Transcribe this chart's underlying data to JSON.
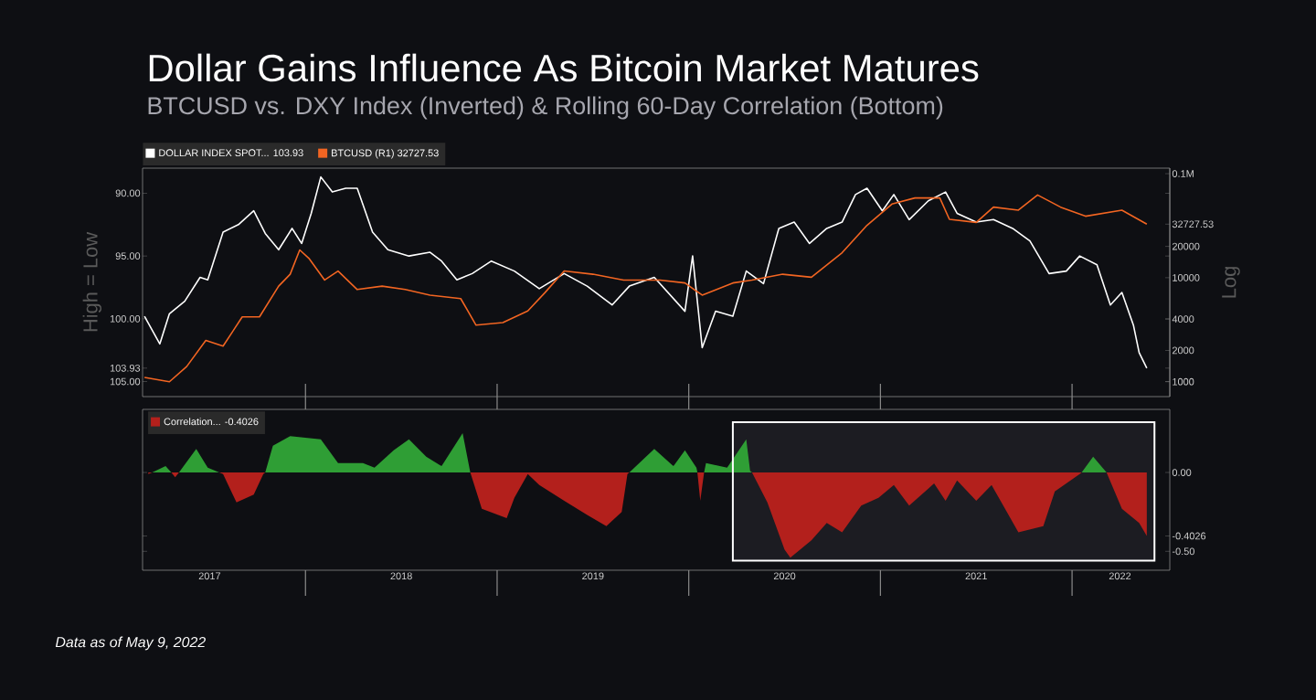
{
  "chart_data": [
    {
      "type": "line",
      "title": "Dollar Gains Influence As Bitcoin Market Matures",
      "subtitle": "BTCUSD vs. DXY Index (Inverted) & Rolling 60-Day Correlation (Bottom)",
      "ylabel": "High = Low",
      "y2label": "Log",
      "xlim": [
        2017.15,
        2022.51
      ],
      "ylim": [
        106.2,
        88.0
      ],
      "yticks": [
        {
          "value": 90,
          "label": "90.00"
        },
        {
          "value": 95,
          "label": "95.00"
        },
        {
          "value": 100,
          "label": "100.00"
        },
        103.93,
        {
          "value": 105,
          "label": "105.00"
        }
      ],
      "y2lim": [
        720,
        113000
      ],
      "y2ticks": [
        1000,
        2000,
        4000,
        10000,
        20000,
        32727.53,
        {
          "value": 100000,
          "label": "0.1M"
        }
      ],
      "log": "y2",
      "legend": "top left",
      "tick_labels": "y",
      "series": [
        {
          "name": "DOLLAR INDEX SPOT... 103.93",
          "color": "#ffffff",
          "x": [
            2017.16,
            2017.24,
            2017.29,
            2017.37,
            2017.45,
            2017.49,
            2017.57,
            2017.65,
            2017.73,
            2017.79,
            2017.86,
            2017.93,
            2017.98,
            2018.03,
            2018.08,
            2018.14,
            2018.21,
            2018.27,
            2018.35,
            2018.43,
            2018.54,
            2018.65,
            2018.71,
            2018.79,
            2018.87,
            2018.97,
            2019.09,
            2019.22,
            2019.35,
            2019.47,
            2019.6,
            2019.69,
            2019.82,
            2019.98,
            2020.02,
            2020.07,
            2020.14,
            2020.23,
            2020.3,
            2020.39,
            2020.47,
            2020.55,
            2020.63,
            2020.72,
            2020.8,
            2020.87,
            2020.93,
            2021.01,
            2021.07,
            2021.15,
            2021.25,
            2021.34,
            2021.4,
            2021.5,
            2021.59,
            2021.69,
            2021.78,
            2021.88,
            2021.97,
            2022.04,
            2022.13,
            2022.2,
            2022.26,
            2022.32,
            2022.35,
            2022.39
          ],
          "values": [
            99.8,
            102.0,
            99.6,
            98.6,
            96.7,
            96.9,
            93.1,
            92.5,
            91.4,
            93.2,
            94.5,
            92.8,
            94.0,
            91.6,
            88.7,
            89.9,
            89.6,
            89.6,
            93.1,
            94.5,
            95.0,
            94.7,
            95.4,
            96.9,
            96.4,
            95.4,
            96.2,
            97.6,
            96.4,
            97.4,
            98.9,
            97.4,
            96.7,
            99.4,
            95.0,
            102.3,
            99.4,
            99.8,
            96.2,
            97.2,
            92.8,
            92.3,
            94.0,
            92.8,
            92.3,
            90.1,
            89.6,
            91.4,
            90.1,
            92.1,
            90.6,
            89.9,
            91.6,
            92.3,
            92.1,
            92.8,
            93.8,
            96.4,
            96.2,
            95.0,
            95.7,
            98.9,
            97.9,
            100.5,
            102.7,
            103.93
          ]
        },
        {
          "name": "BTCUSD (R1) 32727.53",
          "color": "#f26522",
          "axis": "y2",
          "x": [
            2017.16,
            2017.29,
            2017.38,
            2017.48,
            2017.57,
            2017.67,
            2017.76,
            2017.86,
            2017.92,
            2017.97,
            2018.02,
            2018.1,
            2018.17,
            2018.27,
            2018.4,
            2018.52,
            2018.65,
            2018.81,
            2018.89,
            2019.03,
            2019.16,
            2019.25,
            2019.35,
            2019.5,
            2019.66,
            2019.85,
            2019.98,
            2020.07,
            2020.23,
            2020.33,
            2020.49,
            2020.64,
            2020.8,
            2020.93,
            2021.06,
            2021.18,
            2021.31,
            2021.36,
            2021.5,
            2021.59,
            2021.72,
            2021.82,
            2021.94,
            2022.07,
            2022.26,
            2022.39
          ],
          "values": [
            1100,
            1000,
            1400,
            2500,
            2200,
            4200,
            4200,
            8300,
            10800,
            18500,
            15200,
            9500,
            11600,
            7700,
            8300,
            7700,
            6800,
            6300,
            3500,
            3700,
            4800,
            7200,
            11600,
            10800,
            9500,
            9500,
            8900,
            6800,
            8900,
            9500,
            10800,
            10100,
            17400,
            31900,
            51000,
            58400,
            58400,
            36400,
            34000,
            47700,
            44600,
            62400,
            47700,
            39000,
            44600,
            32727.53
          ]
        }
      ]
    },
    {
      "type": "area",
      "xlim": [
        2017.15,
        2022.51
      ],
      "ylim": [
        -0.62,
        0.4
      ],
      "xticks": [
        {
          "value": 2018,
          "label": null
        },
        {
          "value": 2019,
          "label": null
        },
        {
          "value": 2020,
          "label": null
        },
        {
          "value": 2021,
          "label": null
        },
        {
          "value": 2022,
          "label": null
        },
        {
          "value": 2017.5,
          "label": "2017"
        },
        {
          "value": 2018.5,
          "label": "2018"
        },
        {
          "value": 2019.5,
          "label": "2019"
        },
        {
          "value": 2020.5,
          "label": "2020"
        },
        {
          "value": 2021.5,
          "label": "2021"
        },
        {
          "value": 2022.25,
          "label": "2022"
        }
      ],
      "yticks": [
        {
          "value": 0,
          "label": "0.00"
        },
        -0.4026,
        {
          "value": -0.5,
          "label": "-0.50"
        }
      ],
      "legend": "top left",
      "bands": [
        {
          "axis": "x",
          "from": 2020.23,
          "to": 2022.43,
          "color": "#1c1c22"
        }
      ],
      "annotations": [
        "Data as of May 9, 2022"
      ],
      "series": [
        {
          "color": "#2f9e35",
          "x": [
            2017.2,
            2017.27,
            2017.3,
            2017.34,
            2017.43,
            2017.49,
            2017.55,
            2017.79,
            2017.83,
            2017.92,
            2018.08,
            2018.17,
            2018.3,
            2018.36,
            2018.46,
            2018.54,
            2018.63,
            2018.71,
            2018.82,
            2018.86,
            2019.69,
            2019.82,
            2019.92,
            2019.98,
            2020.04,
            2020.045,
            2020.08,
            2020.09,
            2020.2,
            2020.3,
            2020.32,
            2020.33,
            2022.05,
            2022.11,
            2022.18
          ],
          "values": [
            0,
            0.04,
            0,
            0,
            0.15,
            0.03,
            0,
            0,
            0.17,
            0.23,
            0.21,
            0.06,
            0.06,
            0.03,
            0.14,
            0.21,
            0.1,
            0.04,
            0.25,
            0,
            0,
            0.15,
            0.04,
            0.14,
            0.03,
            0,
            0,
            0.06,
            0.03,
            0.21,
            0.01,
            0,
            0,
            0.1,
            0
          ]
        },
        {
          "name": "Correlation... -0.4026",
          "color": "#b3201c",
          "x": [
            2017.18,
            2017.2,
            2017.3,
            2017.32,
            2017.34,
            2017.55,
            2017.57,
            2017.64,
            2017.73,
            2017.78,
            2017.79,
            2018.86,
            2018.92,
            2019.05,
            2019.09,
            2019.16,
            2019.22,
            2019.35,
            2019.47,
            2019.57,
            2019.65,
            2019.68,
            2019.69,
            2020.045,
            2020.06,
            2020.08,
            2020.33,
            2020.41,
            2020.5,
            2020.53,
            2020.64,
            2020.72,
            2020.8,
            2020.9,
            2020.99,
            2021.07,
            2021.15,
            2021.28,
            2021.34,
            2021.4,
            2021.5,
            2021.58,
            2021.72,
            2021.85,
            2021.91,
            2022.04,
            2022.05,
            2022.18,
            2022.26,
            2022.35,
            2022.39
          ],
          "values": [
            -0.01,
            0,
            0,
            -0.03,
            0,
            0,
            -0.01,
            -0.19,
            -0.14,
            -0.01,
            0,
            0,
            -0.23,
            -0.29,
            -0.16,
            -0.01,
            -0.08,
            -0.18,
            -0.27,
            -0.34,
            -0.25,
            -0.01,
            0,
            0,
            -0.18,
            0,
            0,
            -0.19,
            -0.49,
            -0.54,
            -0.43,
            -0.32,
            -0.38,
            -0.21,
            -0.16,
            -0.08,
            -0.21,
            -0.07,
            -0.18,
            -0.05,
            -0.18,
            -0.08,
            -0.38,
            -0.34,
            -0.12,
            -0.01,
            0,
            0,
            -0.23,
            -0.32,
            -0.4026
          ]
        }
      ]
    }
  ]
}
